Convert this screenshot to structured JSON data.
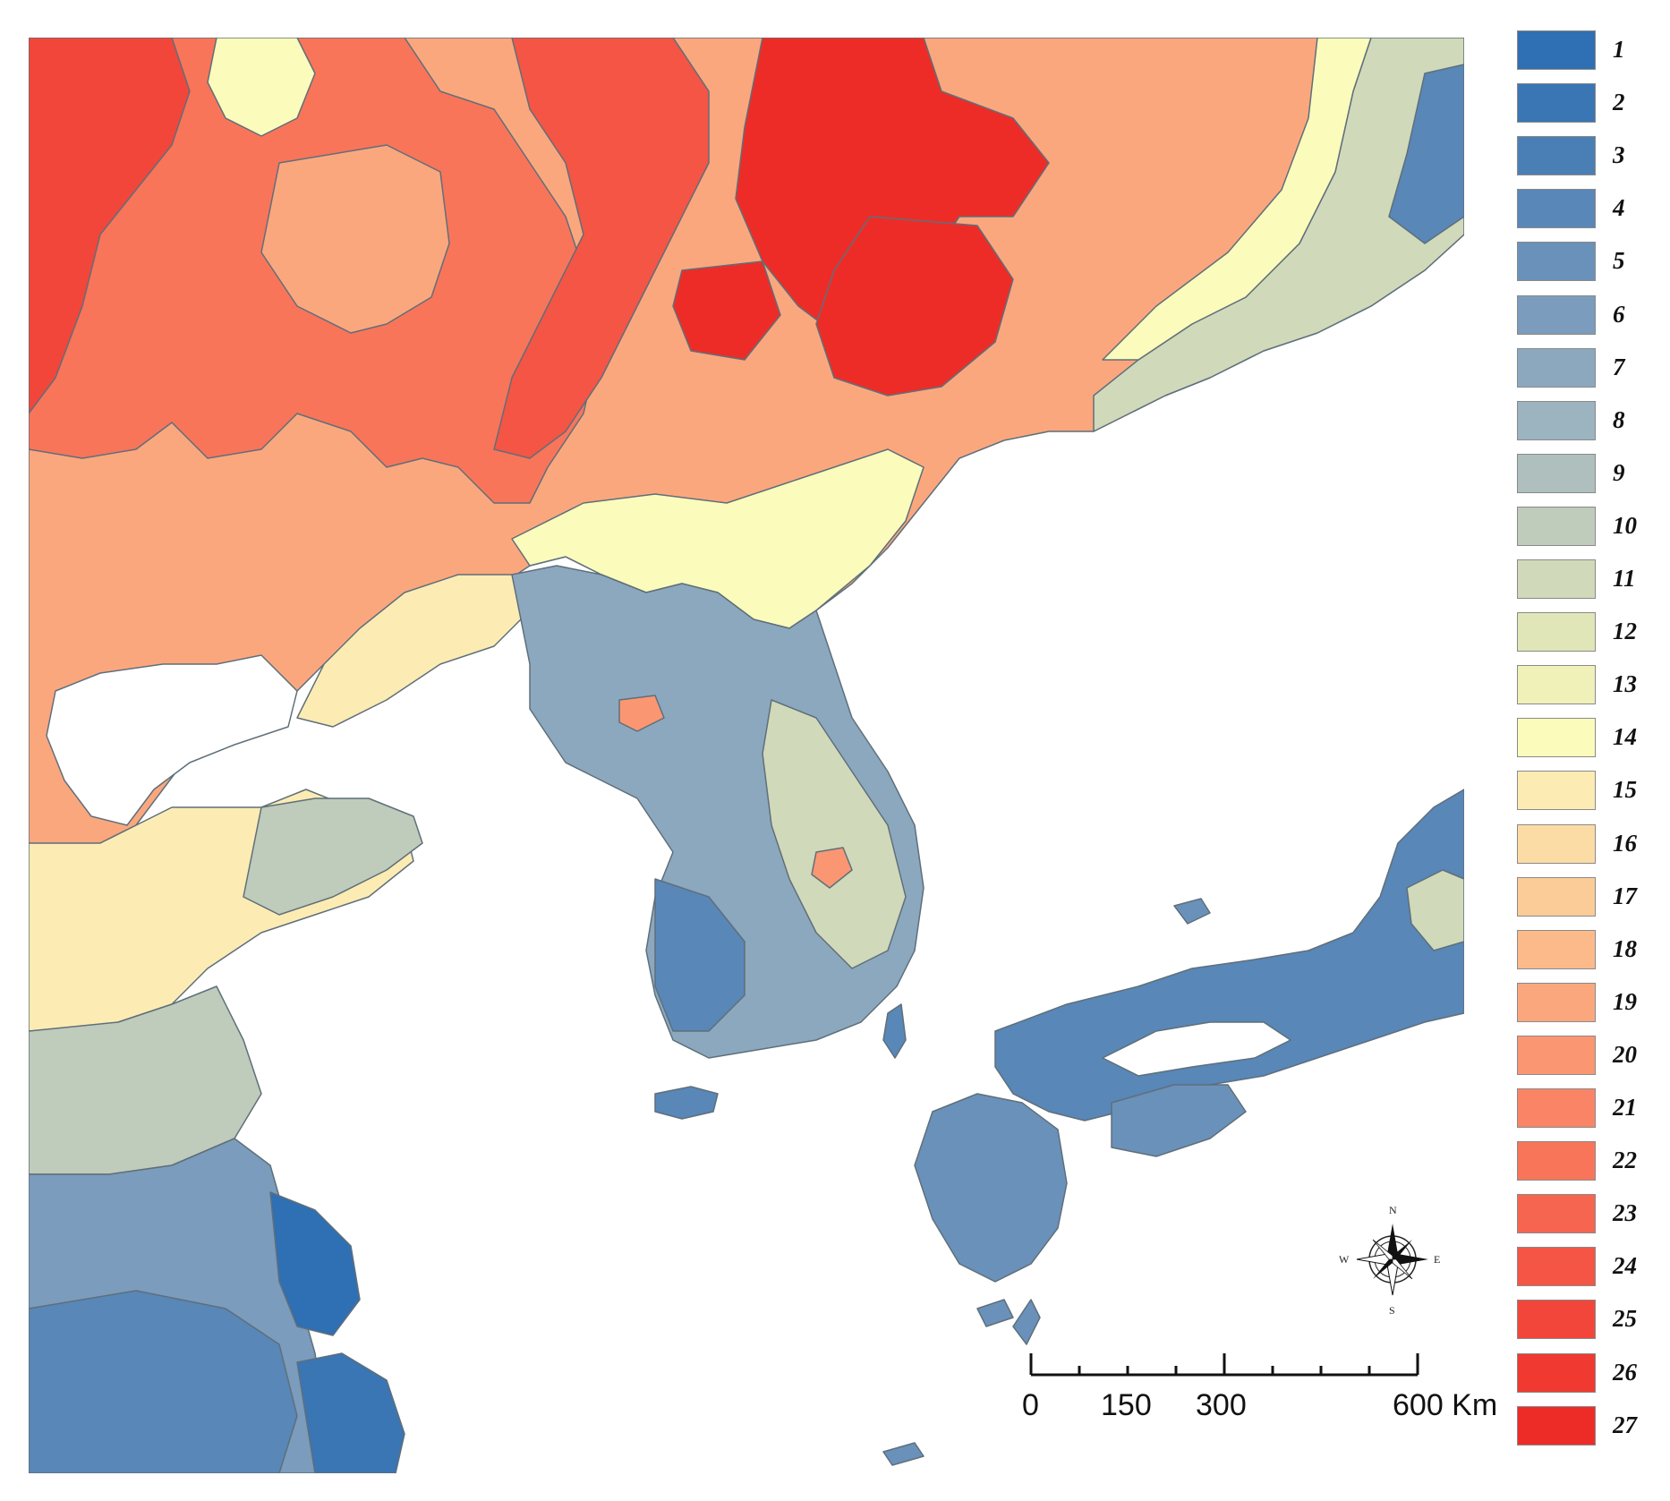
{
  "legend": {
    "items": [
      {
        "label": "1",
        "color": "#2f6fb3"
      },
      {
        "label": "2",
        "color": "#3a75b4"
      },
      {
        "label": "3",
        "color": "#4a7fb6"
      },
      {
        "label": "4",
        "color": "#5887b8"
      },
      {
        "label": "5",
        "color": "#6a91ba"
      },
      {
        "label": "6",
        "color": "#7b9cbc"
      },
      {
        "label": "7",
        "color": "#8ca8be"
      },
      {
        "label": "8",
        "color": "#9cb3c0"
      },
      {
        "label": "9",
        "color": "#aebfbe"
      },
      {
        "label": "10",
        "color": "#bfcbbb"
      },
      {
        "label": "11",
        "color": "#d0d9b9"
      },
      {
        "label": "12",
        "color": "#e1e6b8"
      },
      {
        "label": "13",
        "color": "#eff1b9"
      },
      {
        "label": "14",
        "color": "#fbfbbb"
      },
      {
        "label": "15",
        "color": "#fcecb3"
      },
      {
        "label": "16",
        "color": "#fcdca5"
      },
      {
        "label": "17",
        "color": "#fccc98"
      },
      {
        "label": "18",
        "color": "#fcba8b"
      },
      {
        "label": "19",
        "color": "#fba77e"
      },
      {
        "label": "20",
        "color": "#fa9672"
      },
      {
        "label": "21",
        "color": "#f98566"
      },
      {
        "label": "22",
        "color": "#f8755a"
      },
      {
        "label": "23",
        "color": "#f6654f"
      },
      {
        "label": "24",
        "color": "#f45544"
      },
      {
        "label": "25",
        "color": "#f2463a"
      },
      {
        "label": "26",
        "color": "#f03930"
      },
      {
        "label": "27",
        "color": "#ee2c27"
      }
    ]
  },
  "scale_bar": {
    "labels": [
      "0",
      "150",
      "300",
      "600 Km"
    ],
    "stops_km": [
      0,
      150,
      300,
      600
    ]
  },
  "compass": {
    "n": "N",
    "s": "S",
    "e": "E",
    "w": "W"
  }
}
